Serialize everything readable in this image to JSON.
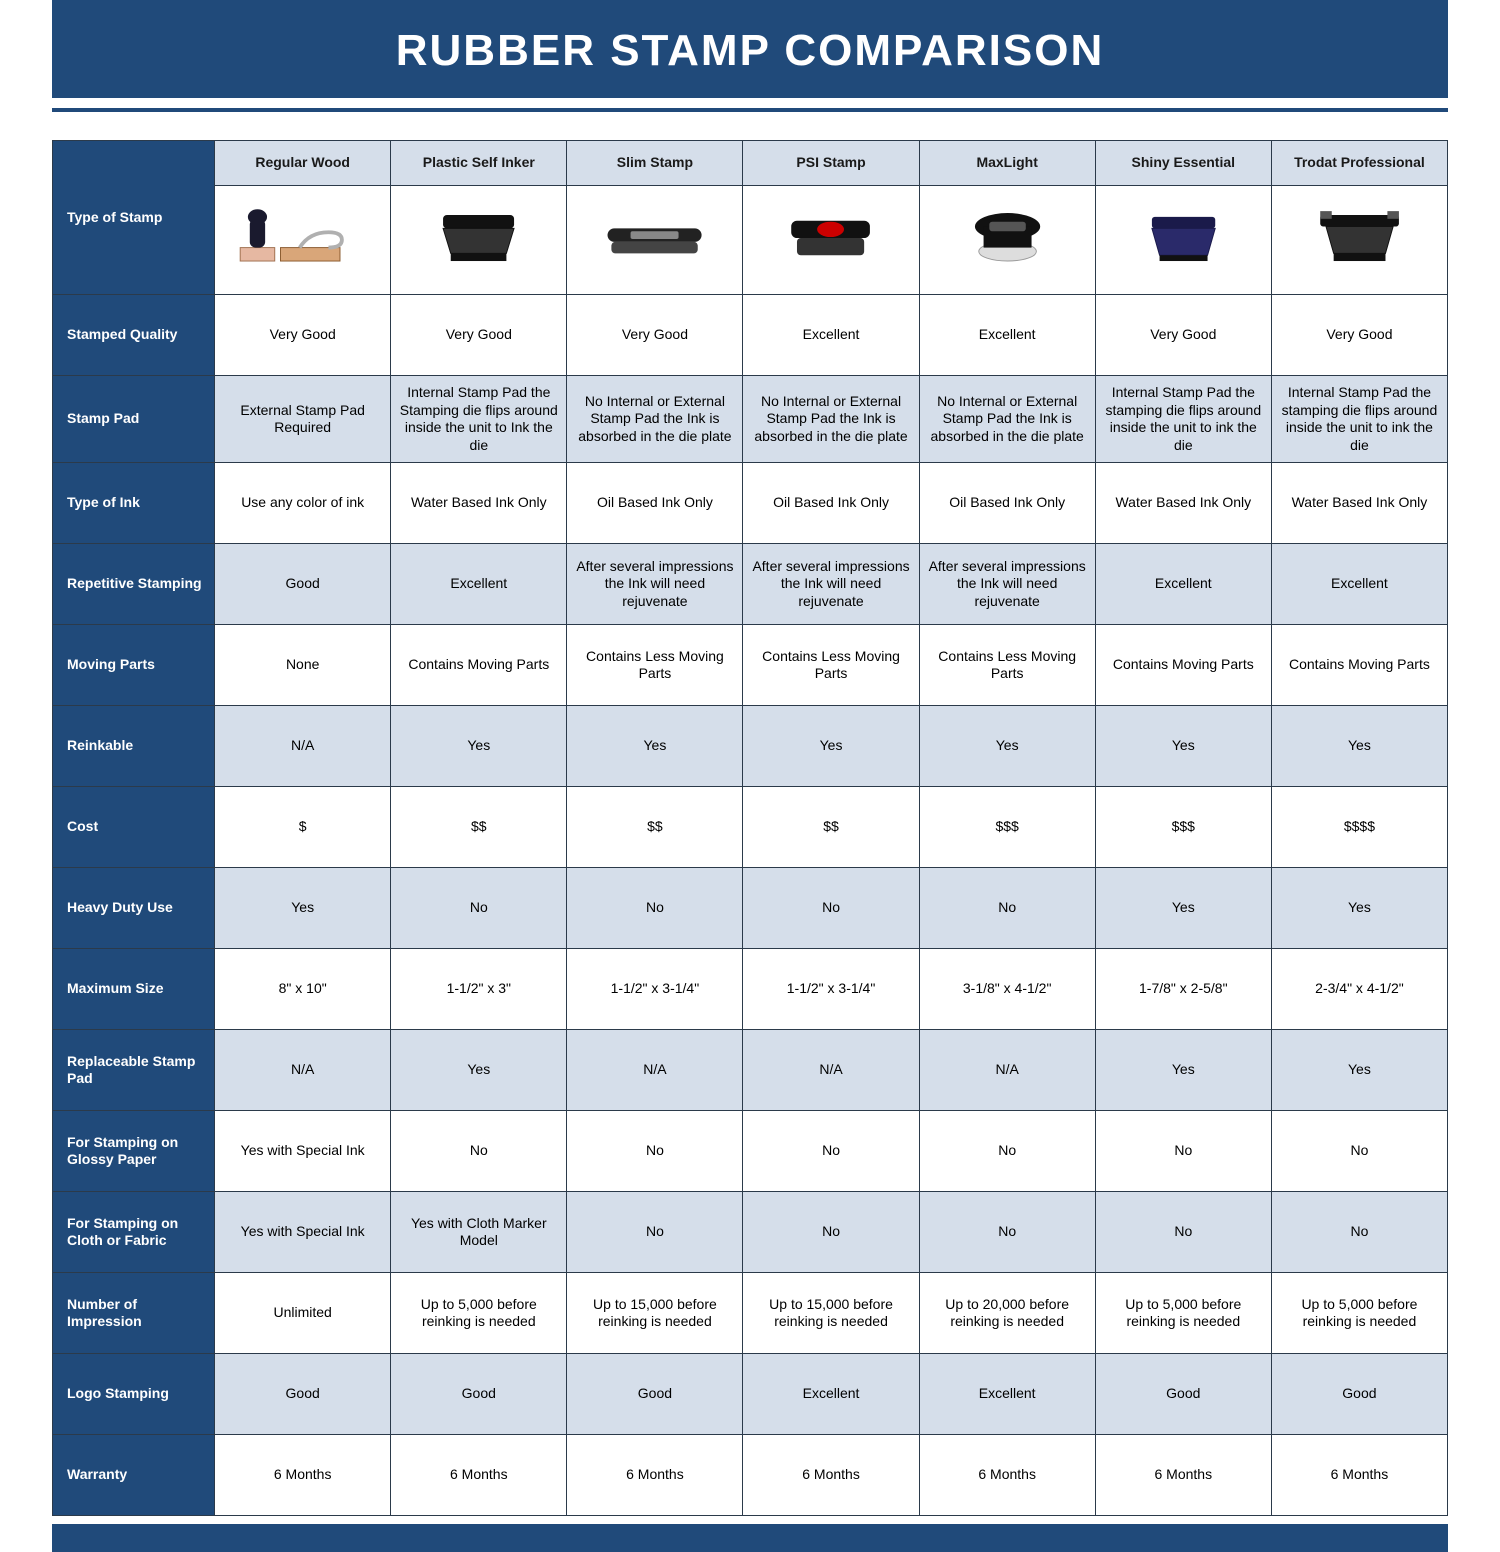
{
  "title": "RUBBER STAMP COMPARISON",
  "colors": {
    "brand": "#204a7a",
    "alt_row": "#d5deea",
    "white": "#ffffff",
    "border": "#2b3a4a"
  },
  "columns": [
    "Regular Wood",
    "Plastic Self Inker",
    "Slim Stamp",
    "PSI Stamp",
    "MaxLight",
    "Shiny Essential",
    "Trodat Professional"
  ],
  "typeOfStampLabel": "Type of Stamp",
  "rows": [
    {
      "label": "Stamped Quality",
      "alt": true,
      "cells": [
        "Very Good",
        "Very Good",
        "Very Good",
        "Excellent",
        "Excellent",
        "Very Good",
        "Very Good"
      ]
    },
    {
      "label": "Stamp Pad",
      "alt": false,
      "cells": [
        "External Stamp Pad Required",
        "Internal Stamp Pad the Stamping die flips around inside the unit to Ink the die",
        "No Internal or External Stamp Pad the Ink is absorbed in the die plate",
        "No Internal or External Stamp Pad the Ink is absorbed in the die plate",
        "No Internal or External Stamp Pad the Ink is absorbed in the die plate",
        "Internal Stamp Pad the stamping die flips around inside the unit to ink the die",
        "Internal Stamp Pad the stamping die flips around inside the unit to ink the die"
      ]
    },
    {
      "label": "Type of Ink",
      "alt": true,
      "cells": [
        "Use any color of ink",
        "Water Based Ink Only",
        "Oil Based Ink Only",
        "Oil Based Ink Only",
        "Oil Based Ink Only",
        "Water Based Ink Only",
        "Water Based Ink Only"
      ]
    },
    {
      "label": "Repetitive Stamping",
      "alt": false,
      "cells": [
        "Good",
        "Excellent",
        "After several impressions the Ink will need rejuvenate",
        "After several impressions the Ink will need rejuvenate",
        "After several impressions the Ink will need rejuvenate",
        "Excellent",
        "Excellent"
      ]
    },
    {
      "label": "Moving Parts",
      "alt": true,
      "cells": [
        "None",
        "Contains Moving Parts",
        "Contains Less Moving Parts",
        "Contains Less Moving Parts",
        "Contains Less Moving Parts",
        "Contains Moving Parts",
        "Contains Moving Parts"
      ]
    },
    {
      "label": "Reinkable",
      "alt": false,
      "cells": [
        "N/A",
        "Yes",
        "Yes",
        "Yes",
        "Yes",
        "Yes",
        "Yes"
      ]
    },
    {
      "label": "Cost",
      "alt": true,
      "cells": [
        "$",
        "$$",
        "$$",
        "$$",
        "$$$",
        "$$$",
        "$$$$"
      ]
    },
    {
      "label": "Heavy Duty Use",
      "alt": false,
      "cells": [
        "Yes",
        "No",
        "No",
        "No",
        "No",
        "Yes",
        "Yes"
      ]
    },
    {
      "label": "Maximum Size",
      "alt": true,
      "cells": [
        "8\" x 10\"",
        "1-1/2\" x 3\"",
        "1-1/2\" x 3-1/4\"",
        "1-1/2\" x 3-1/4\"",
        "3-1/8\" x 4-1/2\"",
        "1-7/8\" x 2-5/8\"",
        "2-3/4\" x 4-1/2\""
      ]
    },
    {
      "label": "Replaceable Stamp Pad",
      "alt": false,
      "cells": [
        "N/A",
        "Yes",
        "N/A",
        "N/A",
        "N/A",
        "Yes",
        "Yes"
      ]
    },
    {
      "label": "For Stamping on Glossy Paper",
      "alt": true,
      "cells": [
        "Yes with Special Ink",
        "No",
        "No",
        "No",
        "No",
        "No",
        "No"
      ]
    },
    {
      "label": "For Stamping on Cloth or Fabric",
      "alt": false,
      "cells": [
        "Yes with Special Ink",
        "Yes with Cloth Marker Model",
        "No",
        "No",
        "No",
        "No",
        "No"
      ]
    },
    {
      "label": "Number of Impression",
      "alt": true,
      "cells": [
        "Unlimited",
        "Up to 5,000 before reinking is needed",
        "Up to 15,000 before reinking is needed",
        "Up to 15,000 before reinking is needed",
        "Up to 20,000 before reinking is needed",
        "Up to 5,000 before reinking is needed",
        "Up to 5,000 before reinking is needed"
      ]
    },
    {
      "label": "Logo Stamping",
      "alt": false,
      "cells": [
        "Good",
        "Good",
        "Good",
        "Excellent",
        "Excellent",
        "Good",
        "Good"
      ]
    },
    {
      "label": "Warranty",
      "alt": true,
      "cells": [
        "6 Months",
        "6 Months",
        "6 Months",
        "6 Months",
        "6 Months",
        "6 Months",
        "6 Months"
      ]
    }
  ]
}
